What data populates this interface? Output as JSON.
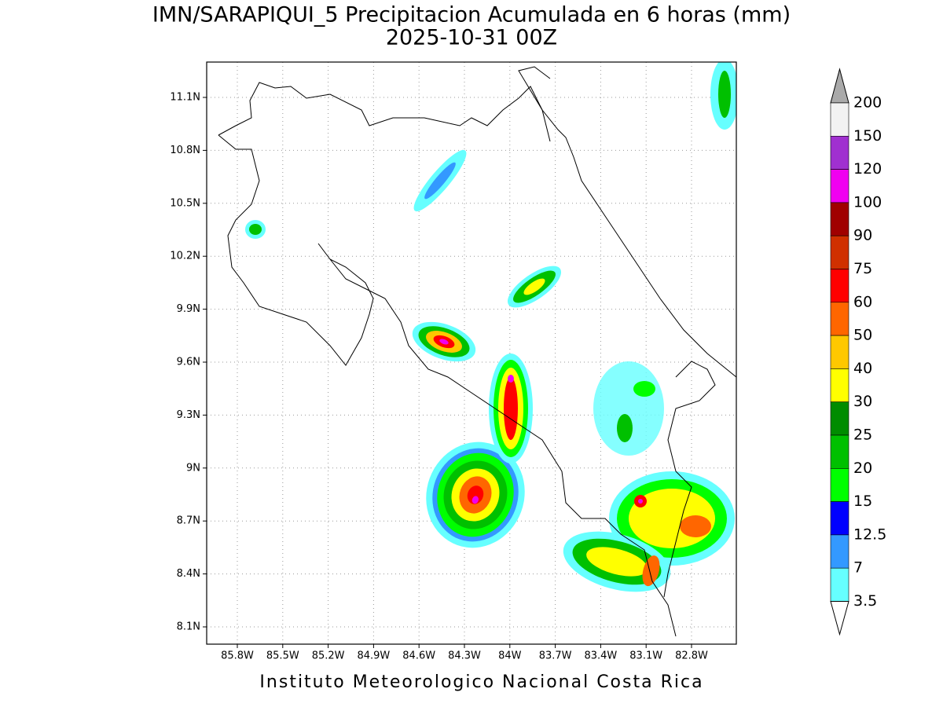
{
  "header": {
    "title": "IMN/SARAPIQUI_5 Precipitacion Acumulada en 6 horas (mm)",
    "subtitle": "2025-10-31 00Z"
  },
  "map": {
    "lat_labels": [
      "11.1N",
      "10.8N",
      "10.5N",
      "10.2N",
      "9.9N",
      "9.6N",
      "9.3N",
      "9N",
      "8.7N",
      "8.4N",
      "8.1N"
    ],
    "lon_labels": [
      "85.8W",
      "85.5W",
      "85.2W",
      "84.9W",
      "84.6W",
      "84.3W",
      "84W",
      "83.7W",
      "83.4W",
      "83.1W",
      "82.8W"
    ]
  },
  "colorbar": {
    "over_color": "#aaaaaa",
    "under_color": "#ffffff",
    "levels": [
      {
        "label": "200",
        "color": "#f2f2f2"
      },
      {
        "label": "150",
        "color": "#a030d0"
      },
      {
        "label": "120",
        "color": "#f000f0"
      },
      {
        "label": "100",
        "color": "#a00000"
      },
      {
        "label": "90",
        "color": "#d03000"
      },
      {
        "label": "75",
        "color": "#ff0000"
      },
      {
        "label": "60",
        "color": "#ff6600"
      },
      {
        "label": "50",
        "color": "#ffc800"
      },
      {
        "label": "40",
        "color": "#ffff00"
      },
      {
        "label": "30",
        "color": "#008c00"
      },
      {
        "label": "25",
        "color": "#00c000"
      },
      {
        "label": "20",
        "color": "#00ff00"
      },
      {
        "label": "15",
        "color": "#0000ff"
      },
      {
        "label": "12.5",
        "color": "#3399ff"
      },
      {
        "label": "7",
        "color": "#66ffff"
      },
      {
        "label": "3.5",
        "color": null
      }
    ]
  },
  "footer": "Instituto Meteorologico Nacional Costa Rica"
}
